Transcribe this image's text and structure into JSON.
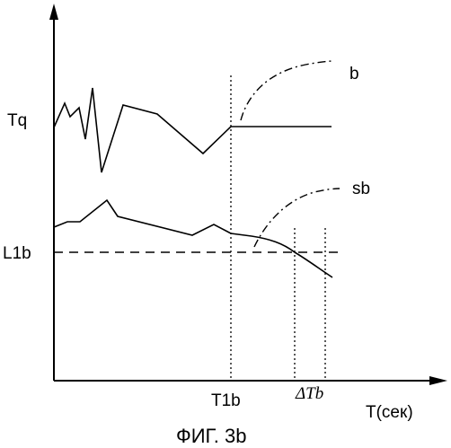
{
  "figure": {
    "caption": "ФИГ. 3b",
    "axes": {
      "x_label": "T(сек)"
    },
    "y_labels": {
      "tq": "Tq",
      "l1b": "L1b"
    },
    "x_labels": {
      "t1b": "T1b",
      "delta_tb": "ΔTb"
    },
    "curve_labels": {
      "b": "b",
      "sb": "sb"
    }
  }
}
